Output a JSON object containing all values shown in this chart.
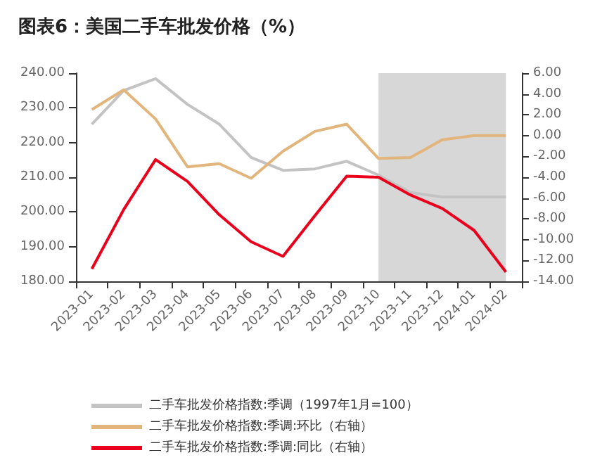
{
  "chart_data": {
    "type": "line",
    "title": "图表6：美国二手车批发价格（%）",
    "categories": [
      "2023-01",
      "2023-02",
      "2023-03",
      "2023-04",
      "2023-05",
      "2023-06",
      "2023-07",
      "2023-08",
      "2023-09",
      "2023-10",
      "2023-11",
      "2023-12",
      "2024-01",
      "2024-02"
    ],
    "series": [
      {
        "name": "二手车批发价格指数:季调（1997年1月=100）",
        "color": "#c3c3c3",
        "values": [
          225.3,
          235,
          238.4,
          231,
          225.3,
          215.7,
          212,
          212.4,
          214.6,
          210.6,
          205.6,
          204.3,
          204.3,
          204.3
        ]
      },
      {
        "name": "二手车批发价格指数:季调:环比（右轴）",
        "color": "#e2b57c",
        "axis": "y2",
        "values": [
          2.5,
          4.4,
          1.6,
          -3.0,
          -2.7,
          -4.1,
          -1.5,
          0.4,
          1.1,
          -2.2,
          -2.1,
          -0.4,
          0.0,
          0.0
        ]
      },
      {
        "name": "二手车批发价格指数:季调:同比（右轴）",
        "color": "#e8001c",
        "axis": "y2",
        "values": [
          -12.8,
          -7.1,
          -2.3,
          -4.4,
          -7.6,
          -10.2,
          -11.6,
          -7.7,
          -3.9,
          -4.0,
          -5.7,
          -7.0,
          -9.1,
          -13.1
        ]
      }
    ],
    "ylim": [
      180,
      240
    ],
    "yticks": [
      {
        "value": 180,
        "label": "180.00"
      },
      {
        "value": 190,
        "label": "190.00"
      },
      {
        "value": 200,
        "label": "200.00"
      },
      {
        "value": 210,
        "label": "210.00"
      },
      {
        "value": 220,
        "label": "220.00"
      },
      {
        "value": 230,
        "label": "230.00"
      },
      {
        "value": 240,
        "label": "240.00"
      }
    ],
    "y2lim": [
      -14,
      6
    ],
    "y2ticks": [
      {
        "value": -14,
        "label": "-14.00"
      },
      {
        "value": -12,
        "label": "-12.00"
      },
      {
        "value": -10,
        "label": "-10.00"
      },
      {
        "value": -8,
        "label": "-8.00"
      },
      {
        "value": -6,
        "label": "-6.00"
      },
      {
        "value": -4,
        "label": "-4.00"
      },
      {
        "value": -2,
        "label": "-2.00"
      },
      {
        "value": 0,
        "label": "0.00"
      },
      {
        "value": 2,
        "label": "2.00"
      },
      {
        "value": 4,
        "label": "4.00"
      },
      {
        "value": 6,
        "label": "6.00"
      }
    ],
    "bands": [
      {
        "axis": "x",
        "from": "2023-10",
        "to": "2024-02",
        "color": "#d3d3d3"
      }
    ],
    "grid": false,
    "legend": "bottom",
    "marker": "none"
  }
}
